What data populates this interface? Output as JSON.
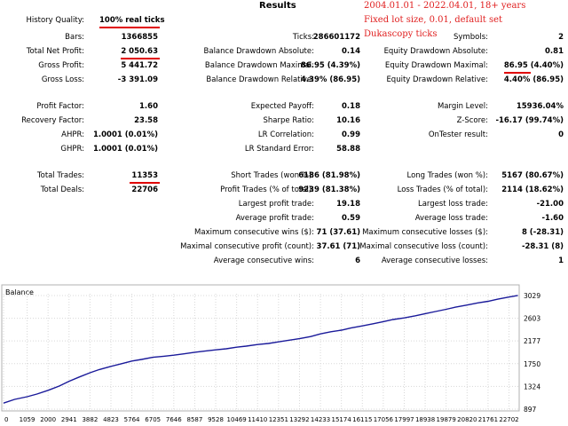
{
  "report": {
    "title": "Results",
    "notes": [
      "2004.01.01 - 2022.04.01, 18+ years",
      "Fixed lot size, 0.01, default set",
      "Dukascopy ticks"
    ],
    "history_quality": {
      "label": "History Quality:",
      "value": "100% real ticks"
    },
    "col1": [
      {
        "label": "Bars:",
        "value": "1366855"
      },
      {
        "label": "Total Net Profit:",
        "value": "2 050.63"
      },
      {
        "label": "Gross Profit:",
        "value": "5 441.72"
      },
      {
        "label": "Gross Loss:",
        "value": "-3 391.09"
      },
      {
        "label": "Profit Factor:",
        "value": "1.60"
      },
      {
        "label": "Recovery Factor:",
        "value": "23.58"
      },
      {
        "label": "AHPR:",
        "value": "1.0001 (0.01%)"
      },
      {
        "label": "GHPR:",
        "value": "1.0001 (0.01%)"
      },
      {
        "label": "Total Trades:",
        "value": "11353"
      },
      {
        "label": "Total Deals:",
        "value": "22706"
      }
    ],
    "col2": [
      {
        "label": "Ticks:",
        "value": "286601172"
      },
      {
        "label": "Balance Drawdown Absolute:",
        "value": "0.14"
      },
      {
        "label": "Balance Drawdown Maximal:",
        "value": "86.95 (4.39%)"
      },
      {
        "label": "Balance Drawdown Relative:",
        "value": "4.39% (86.95)"
      },
      {
        "label": "Expected Payoff:",
        "value": "0.18"
      },
      {
        "label": "Sharpe Ratio:",
        "value": "10.16"
      },
      {
        "label": "LR Correlation:",
        "value": "0.99"
      },
      {
        "label": "LR Standard Error:",
        "value": "58.88"
      },
      {
        "label": "Short Trades (won %):",
        "value": "6186 (81.98%)"
      },
      {
        "label": "Profit Trades (% of total):",
        "value": "9239 (81.38%)"
      },
      {
        "label": "Largest profit trade:",
        "value": "19.18"
      },
      {
        "label": "Average profit trade:",
        "value": "0.59"
      },
      {
        "label": "Maximum consecutive wins ($):",
        "value": "71 (37.61)"
      },
      {
        "label": "Maximal consecutive profit (count):",
        "value": "37.61 (71)"
      },
      {
        "label": "Average consecutive wins:",
        "value": "6"
      }
    ],
    "col3": [
      {
        "label": "Symbols:",
        "value": "2"
      },
      {
        "label": "Equity Drawdown Absolute:",
        "value": "0.81"
      },
      {
        "label": "Equity Drawdown Maximal:",
        "value": "86.95 (4.40%)"
      },
      {
        "label": "Equity Drawdown Relative:",
        "value": "4.40% (86.95)"
      },
      {
        "label": "Margin Level:",
        "value": "15936.04%"
      },
      {
        "label": "Z-Score:",
        "value": "-16.17 (99.74%)"
      },
      {
        "label": "OnTester result:",
        "value": "0"
      },
      {
        "label": "Long Trades (won %):",
        "value": "5167 (80.67%)"
      },
      {
        "label": "Loss Trades (% of total):",
        "value": "2114 (18.62%)"
      },
      {
        "label": "Largest loss trade:",
        "value": "-21.00"
      },
      {
        "label": "Average loss trade:",
        "value": "-1.60"
      },
      {
        "label": "Maximum consecutive losses ($):",
        "value": "8 (-28.31)"
      },
      {
        "label": "Maximal consecutive loss (count):",
        "value": "-28.31 (8)"
      },
      {
        "label": "Average consecutive losses:",
        "value": "1"
      }
    ]
  },
  "colors": {
    "line": "#1a1a9a",
    "grid": "#d8d8d8",
    "highlight": "#e00000"
  },
  "chart_data": {
    "type": "line",
    "title": "Balance",
    "x_ticks": [
      "0",
      "1059",
      "2000",
      "2941",
      "3882",
      "4823",
      "5764",
      "6705",
      "7646",
      "8587",
      "9528",
      "10469",
      "11410",
      "12351",
      "13292",
      "14233",
      "15174",
      "16115",
      "17056",
      "17997",
      "18938",
      "19879",
      "20820",
      "21761",
      "22702"
    ],
    "y_ticks": [
      "3029",
      "2603",
      "2177",
      "1750",
      "1324",
      "897"
    ],
    "series": [
      {
        "x": [
          0,
          500,
          1059,
          1500,
          2000,
          2500,
          2941,
          3400,
          3882,
          4300,
          4823,
          5300,
          5764,
          6200,
          6705,
          7200,
          7646,
          8100,
          8587,
          9000,
          9528,
          10000,
          10469,
          10900,
          11410,
          11900,
          12351,
          12800,
          13292,
          13800,
          14233,
          14700,
          15174,
          15600,
          16115,
          16600,
          17056,
          17500,
          17997,
          18500,
          18938,
          19400,
          19879,
          20300,
          20820,
          21300,
          21761,
          22200,
          22702,
          23100
        ],
        "y": [
          1010,
          1080,
          1130,
          1180,
          1250,
          1330,
          1420,
          1500,
          1580,
          1640,
          1700,
          1750,
          1800,
          1830,
          1870,
          1890,
          1910,
          1935,
          1965,
          1985,
          2010,
          2030,
          2060,
          2080,
          2110,
          2130,
          2160,
          2190,
          2220,
          2260,
          2310,
          2350,
          2380,
          2420,
          2460,
          2500,
          2540,
          2580,
          2610,
          2650,
          2690,
          2730,
          2770,
          2810,
          2850,
          2890,
          2920,
          2960,
          3000,
          3030
        ]
      }
    ],
    "ylim": [
      897,
      3029
    ]
  }
}
